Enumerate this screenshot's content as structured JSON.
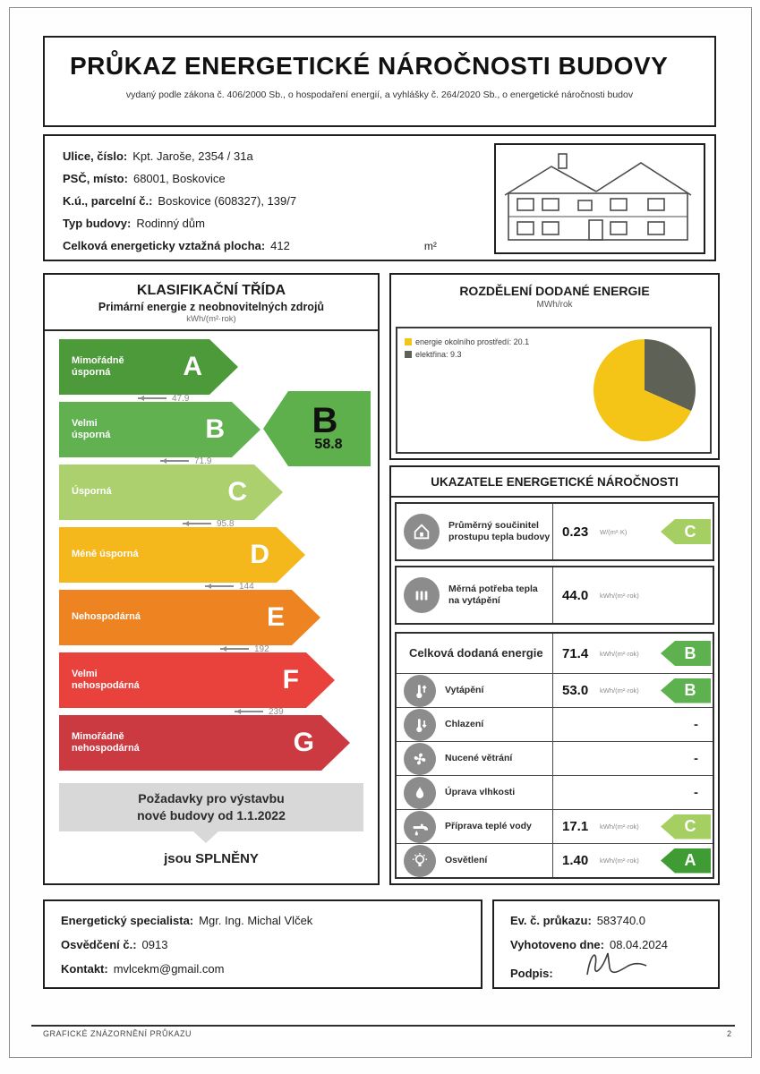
{
  "header": {
    "title": "PRŮKAZ ENERGETICKÉ NÁROČNOSTI BUDOVY",
    "subtitle": "vydaný podle zákona č. 406/2000 Sb., o hospodaření energií, a vyhlášky č. 264/2020 Sb., o energetické náročnosti budov"
  },
  "building": {
    "rows": [
      {
        "label": "Ulice, číslo:",
        "value": "Kpt. Jaroše, 2354 / 31a"
      },
      {
        "label": "PSČ, místo:",
        "value": "68001, Boskovice"
      },
      {
        "label": "K.ú., parcelní č.:",
        "value": "Boskovice (608327), 139/7"
      },
      {
        "label": "Typ budovy:",
        "value": "Rodinný dům"
      },
      {
        "label": "Celková energeticky vztažná plocha:",
        "value": "412",
        "unit": "m²"
      }
    ]
  },
  "classification": {
    "title": "KLASIFIKAČNÍ TŘÍDA",
    "subtitle": "Primární energie z neobnovitelných zdrojů",
    "unit": "kWh/(m²·rok)",
    "bands": [
      {
        "letter": "A",
        "label": "Mimořádně\núsporná",
        "color": "#4c9a3a",
        "threshold": "47.9"
      },
      {
        "letter": "B",
        "label": "Velmi\núsporná",
        "color": "#62b150",
        "threshold": "71.9"
      },
      {
        "letter": "C",
        "label": "Úsporná",
        "color": "#abd06d",
        "threshold": "95.8"
      },
      {
        "letter": "D",
        "label": "Méně úsporná",
        "color": "#f4b71c",
        "threshold": "144"
      },
      {
        "letter": "E",
        "label": "Nehospodárná",
        "color": "#ee8322",
        "threshold": "192"
      },
      {
        "letter": "F",
        "label": "Velmi\nnehospodárná",
        "color": "#e9423d",
        "threshold": "239"
      },
      {
        "letter": "G",
        "label": "Mimořádně\nnehospodárná",
        "color": "#cc3a41",
        "threshold": ""
      }
    ],
    "rating": {
      "letter": "B",
      "value": "58.8",
      "color": "#5db04b"
    },
    "requirements_line1": "Požadavky pro výstavbu",
    "requirements_line2": "nové budovy od 1.1.2022",
    "requirements_result": "jsou SPLNĚNY"
  },
  "pie_section": {
    "title": "ROZDĚLENÍ DODANÉ ENERGIE",
    "unit": "MWh/rok",
    "legend": [
      {
        "marker_color": "#f4c516",
        "text": "energie okolního prostředí: 20.1"
      },
      {
        "marker_color": "#5d6156",
        "text": "elektřina: 9.3"
      }
    ]
  },
  "chart_data": {
    "type": "pie",
    "title": "ROZDĚLENÍ DODANÉ ENERGIE",
    "unit": "MWh/rok",
    "slices": [
      {
        "label": "energie okolního prostředí",
        "value": 20.1,
        "color": "#f4c516"
      },
      {
        "label": "elektřina",
        "value": 9.3,
        "color": "#5d6156"
      }
    ],
    "legend_position": "top-left",
    "start_angle_deg": -90,
    "direction": "clockwise-from-top-dark-slice-first"
  },
  "indicators": {
    "title": "UKAZATELE ENERGETICKÉ NÁROČNOSTI",
    "rows": [
      {
        "icon": "house-icon",
        "label": "Průměrný součinitel\nprostupu tepla budovy",
        "value": "0.23",
        "unit": "W/(m²·K)",
        "class": "C",
        "class_color": "#a6cf63",
        "boxed": true
      },
      {
        "icon": "radiator-icon",
        "label": "Měrná potřeba tepla\nna vytápění",
        "value": "44.0",
        "unit": "kWh/(m²·rok)",
        "class": "",
        "class_color": "",
        "boxed": true
      },
      {
        "icon": "",
        "label": "Celková dodaná energie",
        "big": true,
        "value": "71.4",
        "unit": "kWh/(m²·rok)",
        "class": "B",
        "class_color": "#5eb14f"
      },
      {
        "icon": "heating-icon",
        "label": "Vytápění",
        "value": "53.0",
        "unit": "kWh/(m²·rok)",
        "class": "B",
        "class_color": "#5eb14f"
      },
      {
        "icon": "cooling-icon",
        "label": "Chlazení",
        "value": "",
        "unit": "",
        "class": "",
        "dash": "-"
      },
      {
        "icon": "ventilation-icon",
        "label": "Nucené větrání",
        "value": "",
        "unit": "",
        "class": "",
        "dash": "-"
      },
      {
        "icon": "humidity-icon",
        "label": "Úprava vlhkosti",
        "value": "",
        "unit": "",
        "class": "",
        "dash": "-"
      },
      {
        "icon": "hot-water-icon",
        "label": "Příprava teplé vody",
        "value": "17.1",
        "unit": "kWh/(m²·rok)",
        "class": "C",
        "class_color": "#a6cf63"
      },
      {
        "icon": "lighting-icon",
        "label": "Osvětlení",
        "value": "1.40",
        "unit": "kWh/(m²·rok)",
        "class": "A",
        "class_color": "#3f9c35"
      }
    ]
  },
  "footer": {
    "left_rows": [
      {
        "label": "Energetický specialista:",
        "value": "Mgr. Ing. Michal Vlček"
      },
      {
        "label": "Osvědčení č.:",
        "value": "0913"
      },
      {
        "label": "Kontakt:",
        "value": "mvlcekm@gmail.com"
      }
    ],
    "right_rows": [
      {
        "label": "Ev. č. průkazu:",
        "value": "583740.0"
      },
      {
        "label": "Vyhotoveno dne:",
        "value": "08.04.2024"
      },
      {
        "label": "Podpis:",
        "value": "",
        "signature": true
      }
    ]
  },
  "page_footer": {
    "label": "GRAFICKÉ ZNÁZORNĚNÍ PRŮKAZU",
    "page_number": "2"
  }
}
